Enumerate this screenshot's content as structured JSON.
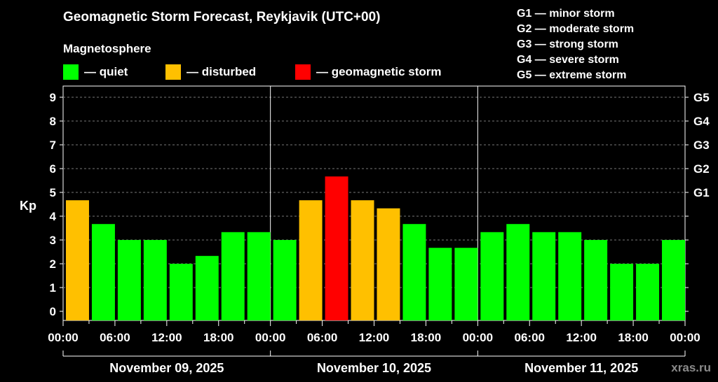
{
  "title": "Geomagnetic Storm Forecast, Reykjavik (UTC+00)",
  "subtitle": "Magnetosphere",
  "legend": [
    {
      "label": "— quiet",
      "color": "#00ff00"
    },
    {
      "label": "— disturbed",
      "color": "#ffc000"
    },
    {
      "label": "— geomagnetic storm",
      "color": "#ff0000"
    }
  ],
  "storm_levels": [
    "G1 — minor storm",
    "G2 — moderate storm",
    "G3 — strong storm",
    "G4 — severe storm",
    "G5 — extreme storm"
  ],
  "watermark": "xras.ru",
  "chart_data": {
    "type": "bar",
    "ylabel": "Kp",
    "ylim": [
      0,
      9
    ],
    "y_ticks": [
      "0",
      "1",
      "2",
      "3",
      "4",
      "5",
      "6",
      "7",
      "8",
      "9"
    ],
    "right_ticks": [
      {
        "value": 5,
        "label": "G1"
      },
      {
        "value": 6,
        "label": "G2"
      },
      {
        "value": 7,
        "label": "G3"
      },
      {
        "value": 8,
        "label": "G4"
      },
      {
        "value": 9,
        "label": "G5"
      }
    ],
    "x_tick_labels": [
      "00:00",
      "06:00",
      "12:00",
      "18:00",
      "00:00",
      "06:00",
      "12:00",
      "18:00",
      "00:00",
      "06:00",
      "12:00",
      "18:00",
      "00:00"
    ],
    "days": [
      "November 09, 2025",
      "November 10, 2025",
      "November 11, 2025"
    ],
    "grid": true,
    "values": [
      4.67,
      3.67,
      3,
      3,
      2,
      2.33,
      3.33,
      3.33,
      3,
      4.67,
      5.67,
      4.67,
      4.33,
      3.67,
      2.67,
      2.67,
      3.33,
      3.67,
      3.33,
      3.33,
      3,
      2,
      2,
      3
    ],
    "colors": {
      "quiet": "#00ff00",
      "disturbed": "#ffc000",
      "storm": "#ff0000"
    }
  }
}
